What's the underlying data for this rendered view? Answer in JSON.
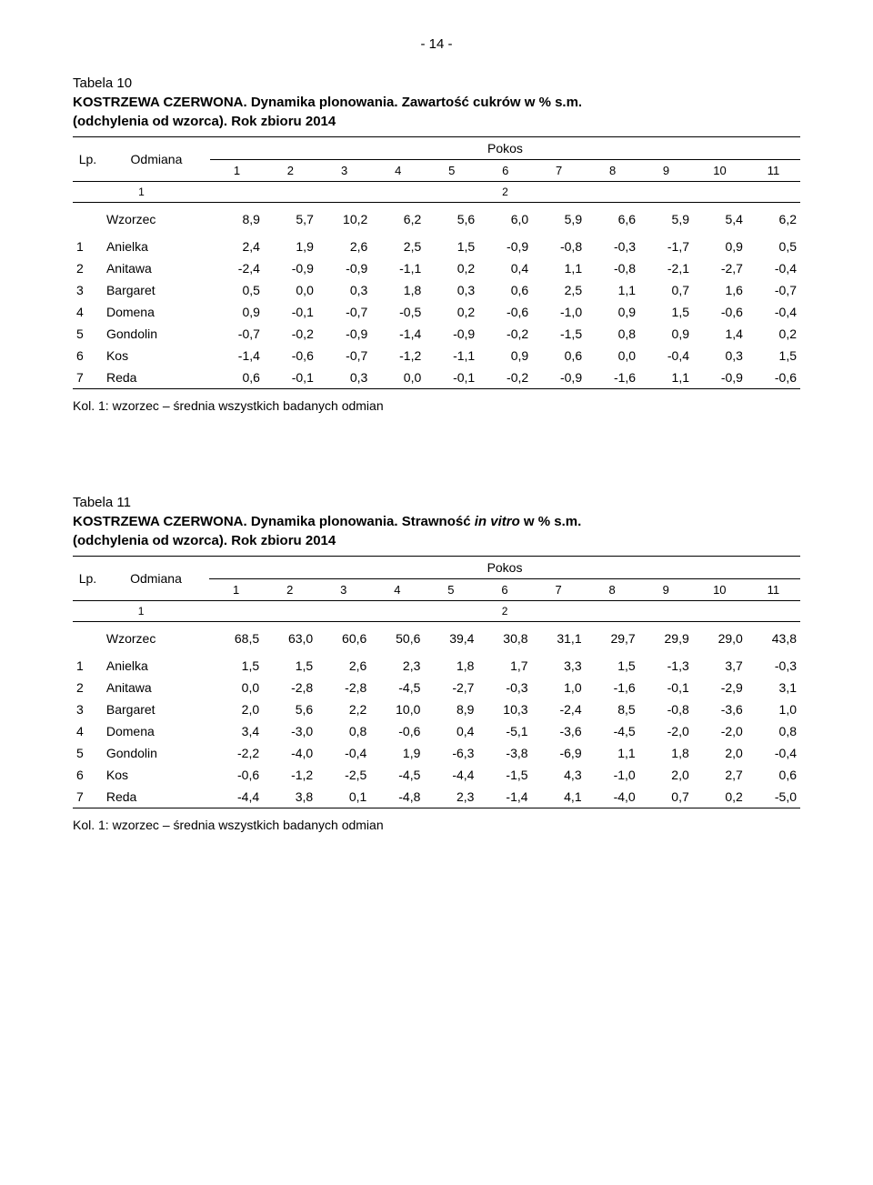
{
  "page_number": "- 14 -",
  "head": {
    "lp_label": "Lp.",
    "odmiana_label": "Odmiana",
    "pokos_label": "Pokos",
    "sub_left": "1",
    "sub_right": "2",
    "cols": [
      "1",
      "2",
      "3",
      "4",
      "5",
      "6",
      "7",
      "8",
      "9",
      "10",
      "11"
    ]
  },
  "table10": {
    "title_line1": "Tabela 10",
    "title_line2_bold": "KOSTRZEWA CZERWONA. Dynamika plonowania. Zawartość cukrów w % s.m.",
    "title_line3_bold": "(odchylenia od wzorca). Rok zbioru 2014",
    "wzorzec_label": "Wzorzec",
    "wzorzec": [
      "8,9",
      "5,7",
      "10,2",
      "6,2",
      "5,6",
      "6,0",
      "5,9",
      "6,6",
      "5,9",
      "5,4",
      "6,2"
    ],
    "rows": [
      {
        "lp": "1",
        "name": "Anielka",
        "v": [
          "2,4",
          "1,9",
          "2,6",
          "2,5",
          "1,5",
          "-0,9",
          "-0,8",
          "-0,3",
          "-1,7",
          "0,9",
          "0,5"
        ]
      },
      {
        "lp": "2",
        "name": "Anitawa",
        "v": [
          "-2,4",
          "-0,9",
          "-0,9",
          "-1,1",
          "0,2",
          "0,4",
          "1,1",
          "-0,8",
          "-2,1",
          "-2,7",
          "-0,4"
        ]
      },
      {
        "lp": "3",
        "name": "Bargaret",
        "v": [
          "0,5",
          "0,0",
          "0,3",
          "1,8",
          "0,3",
          "0,6",
          "2,5",
          "1,1",
          "0,7",
          "1,6",
          "-0,7"
        ]
      },
      {
        "lp": "4",
        "name": "Domena",
        "v": [
          "0,9",
          "-0,1",
          "-0,7",
          "-0,5",
          "0,2",
          "-0,6",
          "-1,0",
          "0,9",
          "1,5",
          "-0,6",
          "-0,4"
        ]
      },
      {
        "lp": "5",
        "name": "Gondolin",
        "v": [
          "-0,7",
          "-0,2",
          "-0,9",
          "-1,4",
          "-0,9",
          "-0,2",
          "-1,5",
          "0,8",
          "0,9",
          "1,4",
          "0,2"
        ]
      },
      {
        "lp": "6",
        "name": "Kos",
        "v": [
          "-1,4",
          "-0,6",
          "-0,7",
          "-1,2",
          "-1,1",
          "0,9",
          "0,6",
          "0,0",
          "-0,4",
          "0,3",
          "1,5"
        ]
      },
      {
        "lp": "7",
        "name": "Reda",
        "v": [
          "0,6",
          "-0,1",
          "0,3",
          "0,0",
          "-0,1",
          "-0,2",
          "-0,9",
          "-1,6",
          "1,1",
          "-0,9",
          "-0,6"
        ]
      }
    ],
    "footnote": "Kol. 1: wzorzec – średnia wszystkich badanych odmian"
  },
  "table11": {
    "title_line1": "Tabela 11",
    "title_line2_prefix_bold": "KOSTRZEWA CZERWONA. Dynamika plonowania. Strawność ",
    "title_line2_italic": "in vitro",
    "title_line2_suffix_bold": " w % s.m.",
    "title_line3_bold": "(odchylenia od wzorca). Rok zbioru 2014",
    "wzorzec_label": "Wzorzec",
    "wzorzec": [
      "68,5",
      "63,0",
      "60,6",
      "50,6",
      "39,4",
      "30,8",
      "31,1",
      "29,7",
      "29,9",
      "29,0",
      "43,8"
    ],
    "rows": [
      {
        "lp": "1",
        "name": "Anielka",
        "v": [
          "1,5",
          "1,5",
          "2,6",
          "2,3",
          "1,8",
          "1,7",
          "3,3",
          "1,5",
          "-1,3",
          "3,7",
          "-0,3"
        ]
      },
      {
        "lp": "2",
        "name": "Anitawa",
        "v": [
          "0,0",
          "-2,8",
          "-2,8",
          "-4,5",
          "-2,7",
          "-0,3",
          "1,0",
          "-1,6",
          "-0,1",
          "-2,9",
          "3,1"
        ]
      },
      {
        "lp": "3",
        "name": "Bargaret",
        "v": [
          "2,0",
          "5,6",
          "2,2",
          "10,0",
          "8,9",
          "10,3",
          "-2,4",
          "8,5",
          "-0,8",
          "-3,6",
          "1,0"
        ]
      },
      {
        "lp": "4",
        "name": "Domena",
        "v": [
          "3,4",
          "-3,0",
          "0,8",
          "-0,6",
          "0,4",
          "-5,1",
          "-3,6",
          "-4,5",
          "-2,0",
          "-2,0",
          "0,8"
        ]
      },
      {
        "lp": "5",
        "name": "Gondolin",
        "v": [
          "-2,2",
          "-4,0",
          "-0,4",
          "1,9",
          "-6,3",
          "-3,8",
          "-6,9",
          "1,1",
          "1,8",
          "2,0",
          "-0,4"
        ]
      },
      {
        "lp": "6",
        "name": "Kos",
        "v": [
          "-0,6",
          "-1,2",
          "-2,5",
          "-4,5",
          "-4,4",
          "-1,5",
          "4,3",
          "-1,0",
          "2,0",
          "2,7",
          "0,6"
        ]
      },
      {
        "lp": "7",
        "name": "Reda",
        "v": [
          "-4,4",
          "3,8",
          "0,1",
          "-4,8",
          "2,3",
          "-1,4",
          "4,1",
          "-4,0",
          "0,7",
          "0,2",
          "-5,0"
        ]
      }
    ],
    "footnote": "Kol. 1: wzorzec – średnia wszystkich badanych odmian"
  }
}
